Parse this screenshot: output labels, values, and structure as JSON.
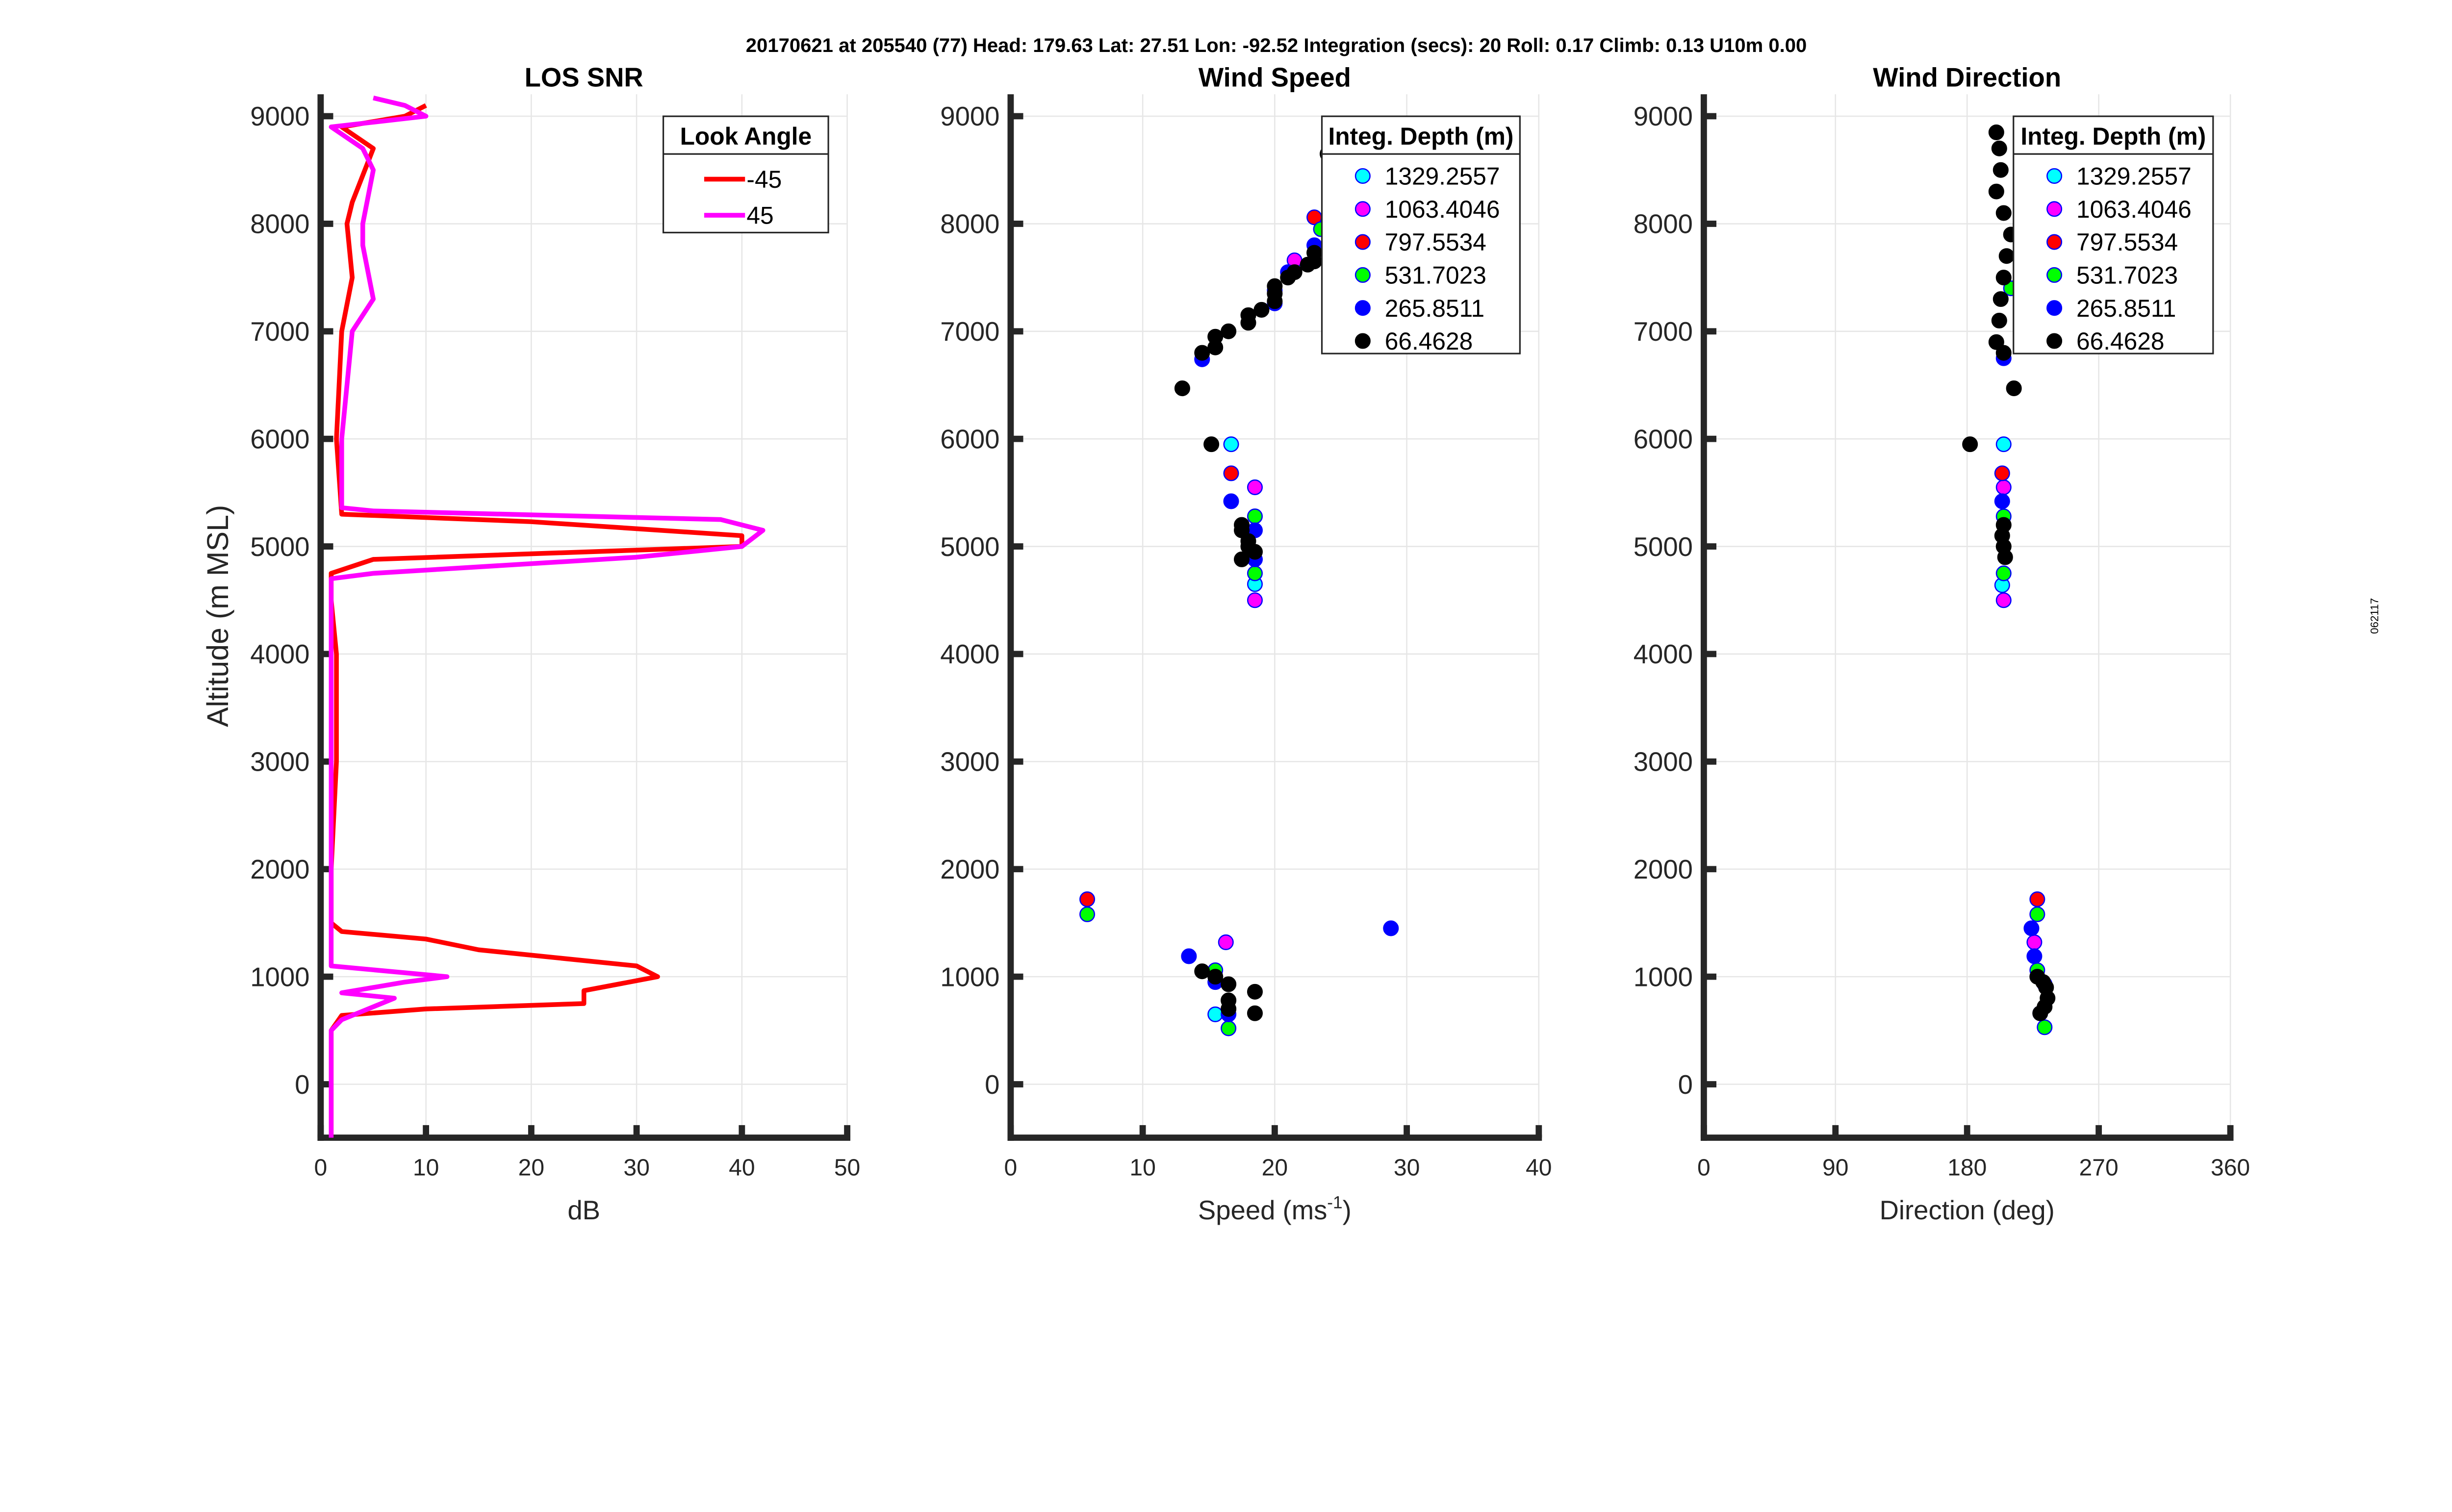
{
  "header": {
    "title": "20170621 at 205540 (77)  Head: 179.63  Lat: 27.51  Lon: -92.52  Integration (secs): 20  Roll: 0.17  Climb: 0.13  U10m 0.00"
  },
  "side_label": "062117",
  "chart_data": [
    {
      "type": "line",
      "title": "LOS SNR",
      "xlabel": "dB",
      "ylabel": "Altitude (m MSL)",
      "xlim": [
        0,
        50
      ],
      "ylim": [
        -500,
        9200
      ],
      "xticks": [
        0,
        10,
        20,
        30,
        40,
        50
      ],
      "yticks": [
        0,
        1000,
        2000,
        3000,
        4000,
        5000,
        6000,
        7000,
        8000,
        9000
      ],
      "grid": true,
      "legend": {
        "title": "Look Angle",
        "placement": "top-right"
      },
      "series": [
        {
          "name": "-45",
          "color": "#ff0000",
          "points": [
            [
              1,
              -500
            ],
            [
              1,
              0
            ],
            [
              1,
              500
            ],
            [
              2,
              640
            ],
            [
              10,
              700
            ],
            [
              25,
              750
            ],
            [
              25,
              870
            ],
            [
              32,
              1000
            ],
            [
              30,
              1100
            ],
            [
              15,
              1250
            ],
            [
              10,
              1350
            ],
            [
              2,
              1420
            ],
            [
              1,
              1500
            ],
            [
              1,
              2000
            ],
            [
              1.5,
              3000
            ],
            [
              1.5,
              4000
            ],
            [
              1,
              4500
            ],
            [
              1,
              4750
            ],
            [
              5,
              4880
            ],
            [
              40,
              5000
            ],
            [
              40,
              5100
            ],
            [
              20,
              5230
            ],
            [
              2,
              5300
            ],
            [
              1.5,
              6000
            ],
            [
              2,
              7000
            ],
            [
              3,
              7500
            ],
            [
              2.5,
              8000
            ],
            [
              3,
              8200
            ],
            [
              5,
              8700
            ],
            [
              2,
              8900
            ],
            [
              8,
              9000
            ],
            [
              10,
              9100
            ]
          ]
        },
        {
          "name": "45",
          "color": "#ff00ff",
          "points": [
            [
              1,
              -500
            ],
            [
              1,
              0
            ],
            [
              1,
              500
            ],
            [
              2,
              600
            ],
            [
              7,
              800
            ],
            [
              2,
              850
            ],
            [
              8,
              950
            ],
            [
              12,
              1000
            ],
            [
              1,
              1100
            ],
            [
              1,
              1300
            ],
            [
              1,
              2000
            ],
            [
              1,
              3000
            ],
            [
              1,
              4000
            ],
            [
              1,
              4700
            ],
            [
              5,
              4750
            ],
            [
              30,
              4900
            ],
            [
              40,
              5000
            ],
            [
              42,
              5150
            ],
            [
              38,
              5250
            ],
            [
              5,
              5330
            ],
            [
              2,
              5360
            ],
            [
              2,
              6000
            ],
            [
              3,
              7000
            ],
            [
              5,
              7300
            ],
            [
              4,
              7800
            ],
            [
              4,
              8000
            ],
            [
              5,
              8500
            ],
            [
              4,
              8700
            ],
            [
              1,
              8900
            ],
            [
              10,
              9000
            ],
            [
              8,
              9100
            ],
            [
              5,
              9170
            ]
          ]
        }
      ]
    },
    {
      "type": "scatter",
      "title": "Wind Speed",
      "xlabel": "Speed (ms",
      "xlabel_sup": "-1",
      "xlabel_end": ")",
      "xlim": [
        0,
        40
      ],
      "ylim": [
        -500,
        9200
      ],
      "xticks": [
        0,
        10,
        20,
        30,
        40
      ],
      "yticks": [
        0,
        1000,
        2000,
        3000,
        4000,
        5000,
        6000,
        7000,
        8000,
        9000
      ],
      "grid": true,
      "legend": {
        "title": "Integ. Depth (m)",
        "placement": "top-right"
      },
      "series": [
        {
          "name": "1329.2557",
          "color": "#00ffff",
          "points": [
            [
              16.7,
              5950
            ],
            [
              18.5,
              4650
            ],
            [
              15.5,
              650
            ]
          ]
        },
        {
          "name": "1063.4046",
          "color": "#ff00ff",
          "points": [
            [
              18.5,
              5550
            ],
            [
              18.5,
              4500
            ],
            [
              16.3,
              1320
            ],
            [
              21.5,
              7660
            ]
          ]
        },
        {
          "name": "797.5534",
          "color": "#ff0000",
          "points": [
            [
              16.7,
              5680
            ],
            [
              5.8,
              1720
            ],
            [
              23,
              8060
            ]
          ]
        },
        {
          "name": "531.7023",
          "color": "#00ff00",
          "points": [
            [
              18.5,
              5280
            ],
            [
              18.5,
              4750
            ],
            [
              5.8,
              1580
            ],
            [
              16.5,
              520
            ],
            [
              15.5,
              1060
            ],
            [
              20,
              7380
            ],
            [
              23.5,
              7950
            ]
          ]
        },
        {
          "name": "265.8511",
          "color": "#0000ff",
          "points": [
            [
              16.7,
              5420
            ],
            [
              18.5,
              5150
            ],
            [
              18.5,
              4880
            ],
            [
              14.5,
              6740
            ],
            [
              23,
              7800
            ],
            [
              13.5,
              1190
            ],
            [
              28.8,
              1450
            ],
            [
              15.5,
              950
            ],
            [
              16.5,
              650
            ],
            [
              21,
              7550
            ],
            [
              20,
              7260
            ]
          ]
        },
        {
          "name": "66.4628",
          "color": "#000000",
          "points": [
            [
              13,
              6470
            ],
            [
              14.5,
              6800
            ],
            [
              15.5,
              6850
            ],
            [
              15.5,
              6950
            ],
            [
              16.5,
              7000
            ],
            [
              18,
              7080
            ],
            [
              18,
              7150
            ],
            [
              19,
              7200
            ],
            [
              20,
              7280
            ],
            [
              20,
              7350
            ],
            [
              20,
              7420
            ],
            [
              21,
              7500
            ],
            [
              21.5,
              7550
            ],
            [
              22.5,
              7620
            ],
            [
              23,
              7730
            ],
            [
              23,
              7650
            ],
            [
              24,
              8650
            ],
            [
              15.2,
              5950
            ],
            [
              17.5,
              5200
            ],
            [
              17.5,
              5150
            ],
            [
              18,
              5050
            ],
            [
              18.5,
              4950
            ],
            [
              17.5,
              4880
            ],
            [
              18,
              5000
            ],
            [
              14.5,
              1050
            ],
            [
              15.5,
              1000
            ],
            [
              16.5,
              930
            ],
            [
              16.5,
              780
            ],
            [
              16.5,
              700
            ],
            [
              18.5,
              860
            ],
            [
              18.5,
              660
            ]
          ]
        }
      ]
    },
    {
      "type": "scatter",
      "title": "Wind Direction",
      "xlabel": "Direction (deg)",
      "xlim": [
        0,
        360
      ],
      "ylim": [
        -500,
        9200
      ],
      "xticks": [
        0,
        90,
        180,
        270,
        360
      ],
      "yticks": [
        0,
        1000,
        2000,
        3000,
        4000,
        5000,
        6000,
        7000,
        8000,
        9000
      ],
      "grid": true,
      "legend": {
        "title": "Integ. Depth (m)",
        "placement": "top-right"
      },
      "series": [
        {
          "name": "1329.2557",
          "color": "#00ffff",
          "points": [
            [
              205,
              5950
            ],
            [
              204,
              4640
            ],
            [
              230,
              660
            ]
          ]
        },
        {
          "name": "1063.4046",
          "color": "#ff00ff",
          "points": [
            [
              205,
              5550
            ],
            [
              205,
              4500
            ],
            [
              226,
              1320
            ]
          ]
        },
        {
          "name": "797.5534",
          "color": "#ff0000",
          "points": [
            [
              204,
              5680
            ],
            [
              228,
              1720
            ]
          ]
        },
        {
          "name": "531.7023",
          "color": "#00ff00",
          "points": [
            [
              205,
              5280
            ],
            [
              205,
              4750
            ],
            [
              228,
              1580
            ],
            [
              228,
              1060
            ],
            [
              233,
              530
            ],
            [
              210,
              7400
            ]
          ]
        },
        {
          "name": "265.8511",
          "color": "#0000ff",
          "points": [
            [
              204,
              5420
            ],
            [
              224,
              1450
            ],
            [
              226,
              1190
            ],
            [
              233,
              930
            ],
            [
              205,
              6750
            ]
          ]
        },
        {
          "name": "66.4628",
          "color": "#000000",
          "points": [
            [
              200,
              8850
            ],
            [
              202,
              8700
            ],
            [
              203,
              8500
            ],
            [
              200,
              8300
            ],
            [
              205,
              8100
            ],
            [
              210,
              7900
            ],
            [
              207,
              7700
            ],
            [
              205,
              7500
            ],
            [
              203,
              7300
            ],
            [
              202,
              7100
            ],
            [
              200,
              6900
            ],
            [
              205,
              6800
            ],
            [
              212,
              6470
            ],
            [
              182,
              5950
            ],
            [
              205,
              5200
            ],
            [
              204,
              5100
            ],
            [
              205,
              5000
            ],
            [
              206,
              4900
            ],
            [
              228,
              1000
            ],
            [
              232,
              950
            ],
            [
              234,
              900
            ],
            [
              235,
              800
            ],
            [
              233,
              720
            ],
            [
              230,
              660
            ]
          ]
        }
      ]
    }
  ]
}
